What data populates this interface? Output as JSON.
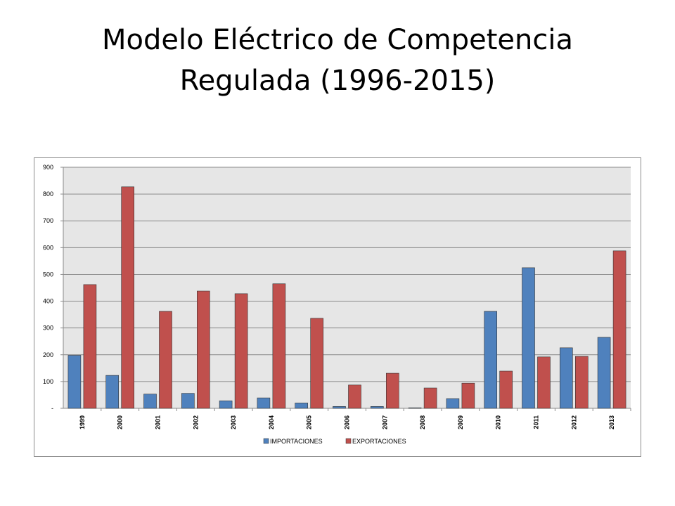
{
  "slide": {
    "title_line1": "Modelo Eléctrico de Competencia",
    "title_line2": "Regulada (1996-2015)"
  },
  "colors": {
    "importaciones": "#4F81BD",
    "exportaciones": "#C0504D",
    "plot_background": "#E6E6E6"
  },
  "chart_data": {
    "type": "bar",
    "title": "",
    "xlabel": "",
    "ylabel": "",
    "categories": [
      "1999",
      "2000",
      "2001",
      "2002",
      "2003",
      "2004",
      "2005",
      "2006",
      "2007",
      "2008",
      "2009",
      "2010",
      "2011",
      "2012",
      "2013"
    ],
    "series": [
      {
        "name": "IMPORTACIONES",
        "values": [
          198,
          123,
          53,
          56,
          28,
          39,
          20,
          7,
          7,
          2,
          36,
          362,
          525,
          226,
          265
        ]
      },
      {
        "name": "EXPORTACIONES",
        "values": [
          462,
          827,
          362,
          438,
          428,
          465,
          336,
          87,
          131,
          76,
          94,
          139,
          192,
          194,
          588
        ]
      }
    ],
    "ylim": [
      0,
      900
    ],
    "yticks": [
      0,
      100,
      200,
      300,
      400,
      500,
      600,
      700,
      800,
      900
    ],
    "ytick_labels": [
      "-",
      "100",
      "200",
      "300",
      "400",
      "500",
      "600",
      "700",
      "800",
      "900"
    ],
    "grid": true,
    "legend_position": "bottom"
  }
}
